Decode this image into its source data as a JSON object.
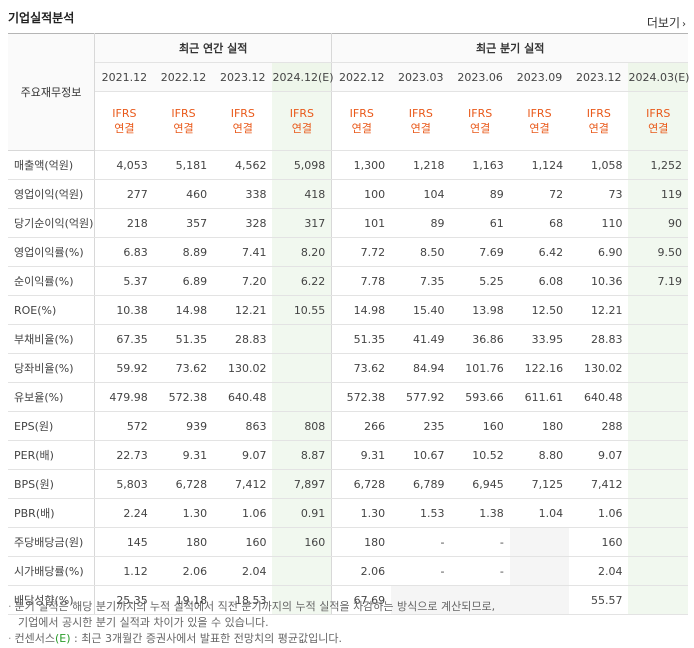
{
  "title": "기업실적분석",
  "more_label": "더보기",
  "row_header": "주요재무정보",
  "group_annual": "최근 연간 실적",
  "group_quarter": "최근 분기 실적",
  "periods": [
    "2021.12",
    "2022.12",
    "2023.12",
    "2024.12(E)",
    "2022.12",
    "2023.03",
    "2023.06",
    "2023.09",
    "2023.12",
    "2024.03(E)"
  ],
  "basis_top": "IFRS",
  "basis_bottom": "연결",
  "rows": [
    {
      "label": "매출액(억원)",
      "values": [
        "4,053",
        "5,181",
        "4,562",
        "5,098",
        "1,300",
        "1,218",
        "1,163",
        "1,124",
        "1,058",
        "1,252"
      ]
    },
    {
      "label": "영업이익(억원)",
      "values": [
        "277",
        "460",
        "338",
        "418",
        "100",
        "104",
        "89",
        "72",
        "73",
        "119"
      ]
    },
    {
      "label": "당기순이익(억원)",
      "values": [
        "218",
        "357",
        "328",
        "317",
        "101",
        "89",
        "61",
        "68",
        "110",
        "90"
      ]
    },
    {
      "label": "영업이익률(%)",
      "values": [
        "6.83",
        "8.89",
        "7.41",
        "8.20",
        "7.72",
        "8.50",
        "7.69",
        "6.42",
        "6.90",
        "9.50"
      ]
    },
    {
      "label": "순이익률(%)",
      "values": [
        "5.37",
        "6.89",
        "7.20",
        "6.22",
        "7.78",
        "7.35",
        "5.25",
        "6.08",
        "10.36",
        "7.19"
      ]
    },
    {
      "label": "ROE(%)",
      "values": [
        "10.38",
        "14.98",
        "12.21",
        "10.55",
        "14.98",
        "15.40",
        "13.98",
        "12.50",
        "12.21",
        ""
      ]
    },
    {
      "label": "부채비율(%)",
      "values": [
        "67.35",
        "51.35",
        "28.83",
        "",
        "51.35",
        "41.49",
        "36.86",
        "33.95",
        "28.83",
        ""
      ]
    },
    {
      "label": "당좌비율(%)",
      "values": [
        "59.92",
        "73.62",
        "130.02",
        "",
        "73.62",
        "84.94",
        "101.76",
        "122.16",
        "130.02",
        ""
      ]
    },
    {
      "label": "유보율(%)",
      "values": [
        "479.98",
        "572.38",
        "640.48",
        "",
        "572.38",
        "577.92",
        "593.66",
        "611.61",
        "640.48",
        ""
      ]
    },
    {
      "label": "EPS(원)",
      "values": [
        "572",
        "939",
        "863",
        "808",
        "266",
        "235",
        "160",
        "180",
        "288",
        ""
      ]
    },
    {
      "label": "PER(배)",
      "values": [
        "22.73",
        "9.31",
        "9.07",
        "8.87",
        "9.31",
        "10.67",
        "10.52",
        "8.80",
        "9.07",
        ""
      ]
    },
    {
      "label": "BPS(원)",
      "values": [
        "5,803",
        "6,728",
        "7,412",
        "7,897",
        "6,728",
        "6,789",
        "6,945",
        "7,125",
        "7,412",
        ""
      ]
    },
    {
      "label": "PBR(배)",
      "values": [
        "2.24",
        "1.30",
        "1.06",
        "0.91",
        "1.30",
        "1.53",
        "1.38",
        "1.04",
        "1.06",
        ""
      ]
    },
    {
      "label": "주당배당금(원)",
      "values": [
        "145",
        "180",
        "160",
        "160",
        "180",
        "-",
        "-",
        "",
        "160",
        ""
      ]
    },
    {
      "label": "시가배당률(%)",
      "values": [
        "1.12",
        "2.06",
        "2.04",
        "",
        "2.06",
        "-",
        "-",
        "",
        "2.04",
        ""
      ]
    },
    {
      "label": "배당성향(%)",
      "values": [
        "25.35",
        "19.18",
        "18.53",
        "",
        "67.69",
        "",
        "",
        "",
        "55.57",
        ""
      ]
    }
  ],
  "notes": [
    "분기 실적은 해당 분기까지의 누적 실적에서 직전 분기까지의 누적 실적을 차감하는 방식으로 계산되므로,",
    "기업에서 공시한 분기 실적과 차이가 있을 수 있습니다.",
    "컨센서스",
    "(E)",
    ": 최근 3개월간 증권사에서 발표한 전망치의 평균값입니다."
  ]
}
